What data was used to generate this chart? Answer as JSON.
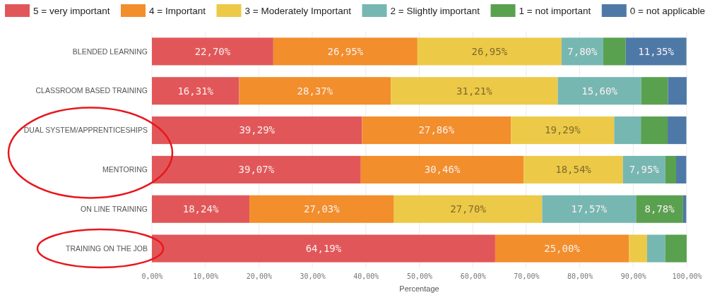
{
  "chart_data": {
    "type": "bar",
    "orientation": "horizontal",
    "stacked": true,
    "xlabel": "Percentage",
    "categories": [
      "BLENDED LEARNING",
      "CLASSROOM BASED TRAINING",
      "DUAL SYSTEM/APPRENTICESHIPS",
      "MENTORING",
      "ON LINE TRAINING",
      "TRAINING ON THE JOB"
    ],
    "series": [
      {
        "name": "5 = very important",
        "color": "#e15759",
        "values": [
          22.7,
          16.31,
          39.29,
          39.07,
          18.24,
          64.19
        ],
        "value_labels": [
          "22,70%",
          "16,31%",
          "39,29%",
          "39,07%",
          "18,24%",
          "64,19%"
        ]
      },
      {
        "name": "4 = Important",
        "color": "#f28e2b",
        "values": [
          26.95,
          28.37,
          27.86,
          30.46,
          27.03,
          25.0
        ],
        "value_labels": [
          "26,95%",
          "28,37%",
          "27,86%",
          "30,46%",
          "27,03%",
          "25,00%"
        ]
      },
      {
        "name": "3 = Moderately Important",
        "color": "#edc948",
        "values": [
          26.95,
          31.21,
          19.29,
          18.54,
          27.7,
          3.4
        ],
        "value_labels": [
          "26,95%",
          "31,21%",
          "19,29%",
          "18,54%",
          "27,70%",
          null
        ]
      },
      {
        "name": "2 = Slightly important",
        "color": "#76b7b2",
        "values": [
          7.8,
          15.6,
          5.0,
          7.95,
          17.57,
          3.4
        ],
        "value_labels": [
          "7,80%",
          "15,60%",
          null,
          "7,95%",
          "17,57%",
          null
        ]
      },
      {
        "name": "1 = not important",
        "color": "#59a14f",
        "values": [
          4.2,
          5.0,
          5.0,
          2.0,
          8.78,
          4.0
        ],
        "value_labels": [
          null,
          null,
          null,
          null,
          "8,78%",
          null
        ]
      },
      {
        "name": "0 = not applicable",
        "color": "#4e79a7",
        "values": [
          11.35,
          3.5,
          3.5,
          1.9,
          0.6,
          0
        ],
        "value_labels": [
          "11,35%",
          null,
          null,
          null,
          null,
          null
        ]
      }
    ],
    "xlim": [
      0,
      100
    ],
    "xticks": [
      {
        "value": 0,
        "label": "0,00%"
      },
      {
        "value": 10,
        "label": "10,00%"
      },
      {
        "value": 20,
        "label": "20,00%"
      },
      {
        "value": 30,
        "label": "30,00%"
      },
      {
        "value": 40,
        "label": "40,00%"
      },
      {
        "value": 50,
        "label": "50,00%"
      },
      {
        "value": 60,
        "label": "60,00%"
      },
      {
        "value": 70,
        "label": "70,00%"
      },
      {
        "value": 80,
        "label": "80,00%"
      },
      {
        "value": 90,
        "label": "90,00%"
      },
      {
        "value": 100,
        "label": "100,00%"
      }
    ],
    "grid": "x",
    "legend": "top"
  }
}
